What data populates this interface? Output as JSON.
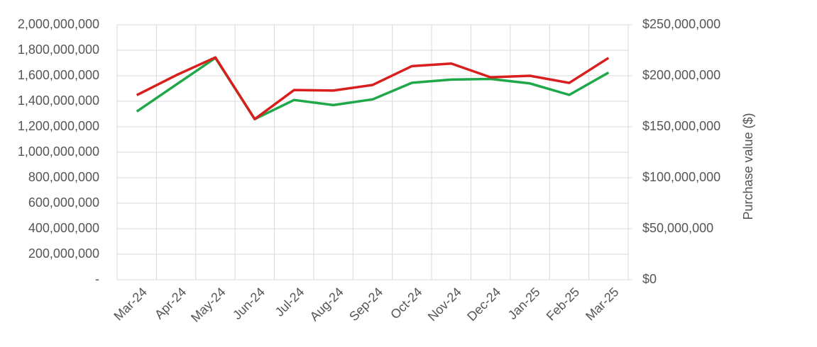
{
  "chart_data": {
    "type": "line",
    "categories": [
      "Mar-24",
      "Apr-24",
      "May-24",
      "Jun-24",
      "Jul-24",
      "Aug-24",
      "Sep-24",
      "Oct-24",
      "Nov-24",
      "Dec-24",
      "Jan-25",
      "Feb-25",
      "Mar-25"
    ],
    "series": [
      {
        "color": "#1fa84a",
        "values": [
          1320000000,
          1530000000,
          1740000000,
          1260000000,
          1410000000,
          1370000000,
          1415000000,
          1545000000,
          1570000000,
          1575000000,
          1540000000,
          1450000000,
          1625000000
        ]
      },
      {
        "color": "#d91e1e",
        "axis": "y2",
        "values": [
          181000000,
          200500000,
          218000000,
          157500000,
          186000000,
          185500000,
          191000000,
          209500000,
          212000000,
          198500000,
          200000000,
          193000000,
          217500000
        ]
      }
    ],
    "ylim": [
      0,
      2000000000
    ],
    "yticks": [
      {
        "value": 0,
        "label": "-"
      },
      {
        "value": 200000000,
        "label": "200,000,000"
      },
      {
        "value": 400000000,
        "label": "400,000,000"
      },
      {
        "value": 600000000,
        "label": "600,000,000"
      },
      {
        "value": 800000000,
        "label": "800,000,000"
      },
      {
        "value": 1000000000,
        "label": "1,000,000,000"
      },
      {
        "value": 1200000000,
        "label": "1,200,000,000"
      },
      {
        "value": 1400000000,
        "label": "1,400,000,000"
      },
      {
        "value": 1600000000,
        "label": "1,600,000,000"
      },
      {
        "value": 1800000000,
        "label": "1,800,000,000"
      },
      {
        "value": 2000000000,
        "label": "2,000,000,000"
      }
    ],
    "y2lim": [
      0,
      250000000
    ],
    "y2ticks": [
      {
        "value": 0,
        "label": "$0"
      },
      {
        "value": 50000000,
        "label": "$50,000,000"
      },
      {
        "value": 100000000,
        "label": "$100,000,000"
      },
      {
        "value": 150000000,
        "label": "$150,000,000"
      },
      {
        "value": 200000000,
        "label": "$200,000,000"
      },
      {
        "value": 250000000,
        "label": "$250,000,000"
      }
    ],
    "y2label": "Purchase value ($)",
    "grid": true
  }
}
